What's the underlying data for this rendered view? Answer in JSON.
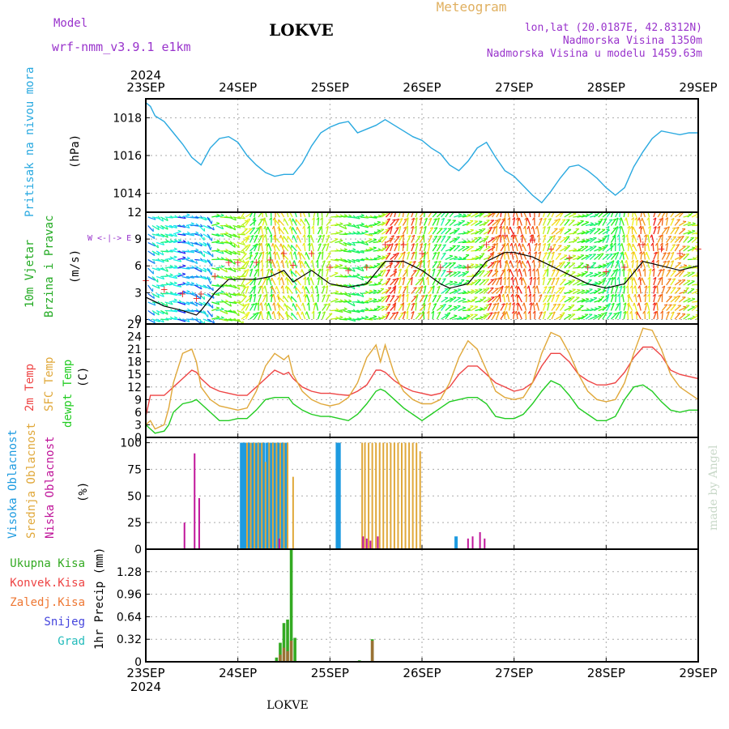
{
  "header": {
    "model_label": "Model",
    "model_name": "wrf-nmm_v3.9.1  e1km",
    "station": "LOKVE",
    "meteogram": "Meteogram",
    "lonlat": "lon,lat (20.0187E, 42.8312N)",
    "elev": "Nadmorska Visina 1350m",
    "elev_model": "Nadmorska Visina u modelu 1459.63m",
    "footer_station": "LOKVE",
    "credit": "made by Angel"
  },
  "colors": {
    "pressure": "#29a9e0",
    "t2m": "#ee4444",
    "sfc": "#e0a83a",
    "dew": "#22cc22",
    "high_cloud": "#1e9be0",
    "mid_cloud": "#e0a83a",
    "low_cloud": "#c0159a",
    "precip_total": "#33aa22",
    "precip_conv": "#ee4444",
    "precip_ice": "#ee7733",
    "snow": "#4444dd",
    "hail": "#22bbbb",
    "wind_label": "#22aa22",
    "label_purple": "#9933cc"
  },
  "chart_data": [
    {
      "type": "line",
      "name": "pressure",
      "ylabel_lines": [
        "Pritisak na nivou mora",
        "(hPa)"
      ],
      "xlim": [
        0,
        6
      ],
      "ylim": [
        1013,
        1019
      ],
      "yticks": [
        1014,
        1016,
        1018
      ],
      "x": [
        0,
        0.05,
        0.1,
        0.2,
        0.3,
        0.4,
        0.5,
        0.6,
        0.7,
        0.8,
        0.9,
        1.0,
        1.1,
        1.2,
        1.3,
        1.4,
        1.5,
        1.6,
        1.7,
        1.8,
        1.9,
        2.0,
        2.1,
        2.2,
        2.3,
        2.4,
        2.5,
        2.6,
        2.7,
        2.8,
        2.9,
        3.0,
        3.1,
        3.2,
        3.3,
        3.4,
        3.5,
        3.6,
        3.7,
        3.8,
        3.9,
        4.0,
        4.1,
        4.2,
        4.3,
        4.4,
        4.5,
        4.6,
        4.7,
        4.8,
        4.9,
        5.0,
        5.1,
        5.2,
        5.3,
        5.4,
        5.5,
        5.6,
        5.7,
        5.8,
        5.9,
        6.0
      ],
      "y": [
        1018.8,
        1018.6,
        1018.1,
        1017.8,
        1017.2,
        1016.6,
        1015.9,
        1015.5,
        1016.4,
        1016.9,
        1017.0,
        1016.7,
        1016.0,
        1015.5,
        1015.1,
        1014.9,
        1015.0,
        1015.0,
        1015.6,
        1016.5,
        1017.2,
        1017.5,
        1017.7,
        1017.8,
        1017.2,
        1017.4,
        1017.6,
        1017.9,
        1017.6,
        1017.3,
        1017.0,
        1016.8,
        1016.4,
        1016.1,
        1015.5,
        1015.2,
        1015.7,
        1016.4,
        1016.7,
        1015.9,
        1015.2,
        1014.9,
        1014.4,
        1013.9,
        1013.5,
        1014.1,
        1014.8,
        1015.4,
        1015.5,
        1015.2,
        1014.8,
        1014.3,
        1013.9,
        1014.3,
        1015.4,
        1016.2,
        1016.9,
        1017.3,
        1017.2,
        1017.1,
        1017.2,
        1017.2
      ]
    },
    {
      "type": "line",
      "name": "wind",
      "ylabel_lines": [
        "10m Vjetar",
        "Brzina i Pravac",
        "(m/s)"
      ],
      "compass": "W <-|-> E",
      "xlim": [
        0,
        6
      ],
      "ylim": [
        -0.5,
        12
      ],
      "yticks": [
        0,
        3,
        6,
        9,
        12
      ],
      "x": [
        0,
        0.2,
        0.4,
        0.55,
        0.6,
        0.75,
        0.9,
        1.0,
        1.2,
        1.35,
        1.5,
        1.6,
        1.8,
        2.0,
        2.2,
        2.4,
        2.6,
        2.8,
        3.0,
        3.2,
        3.3,
        3.5,
        3.7,
        3.9,
        4.0,
        4.2,
        4.4,
        4.6,
        4.8,
        5.0,
        5.2,
        5.4,
        5.6,
        5.8,
        6.0
      ],
      "y": [
        2.5,
        1.5,
        1.0,
        0.5,
        1.0,
        3.0,
        4.5,
        4.5,
        4.5,
        4.8,
        5.5,
        4.2,
        5.5,
        4.0,
        3.6,
        4.0,
        6.5,
        6.5,
        5.5,
        4.0,
        3.5,
        4.0,
        6.5,
        7.5,
        7.5,
        7.0,
        6.0,
        5.0,
        4.0,
        3.5,
        4.0,
        6.5,
        6.0,
        5.5,
        6.0
      ]
    },
    {
      "type": "line",
      "name": "temperature",
      "ylabel_lines": [
        "2m Temp",
        "SFC Temp",
        "dewpt Temp",
        "(C)"
      ],
      "xlim": [
        0,
        6
      ],
      "ylim": [
        0,
        27
      ],
      "yticks": [
        0,
        3,
        6,
        9,
        12,
        15,
        18,
        21,
        24,
        27
      ],
      "x": [
        0,
        0.05,
        0.1,
        0.2,
        0.25,
        0.3,
        0.4,
        0.5,
        0.55,
        0.6,
        0.7,
        0.8,
        0.9,
        1.0,
        1.1,
        1.2,
        1.3,
        1.4,
        1.5,
        1.55,
        1.6,
        1.7,
        1.8,
        1.9,
        2.0,
        2.1,
        2.2,
        2.3,
        2.4,
        2.5,
        2.55,
        2.6,
        2.7,
        2.8,
        2.9,
        3.0,
        3.1,
        3.2,
        3.3,
        3.4,
        3.5,
        3.6,
        3.7,
        3.8,
        3.9,
        4.0,
        4.1,
        4.2,
        4.3,
        4.4,
        4.5,
        4.6,
        4.7,
        4.8,
        4.9,
        5.0,
        5.1,
        5.2,
        5.3,
        5.4,
        5.5,
        5.6,
        5.7,
        5.8,
        5.9,
        6.0
      ],
      "series": [
        {
          "name": "2m Temp",
          "key": "t2m",
          "values": [
            5,
            10,
            10,
            10,
            11,
            12,
            14,
            16,
            15.5,
            14,
            12,
            11,
            10.5,
            10,
            10,
            12,
            14,
            16,
            15,
            15.5,
            14,
            12,
            11,
            10.5,
            10.5,
            10.2,
            10,
            11,
            12.5,
            16,
            16,
            15.5,
            13.5,
            12,
            11,
            10.5,
            10,
            10.5,
            12,
            15,
            17,
            17,
            15,
            13,
            12,
            11,
            11.5,
            13,
            17,
            20,
            20,
            18,
            15,
            13.5,
            12.5,
            12.5,
            13,
            15.5,
            19,
            21.5,
            21.5,
            19.5,
            16,
            15,
            14.5,
            14
          ]
        },
        {
          "name": "SFC Temp",
          "key": "sfc",
          "values": [
            3,
            4,
            2,
            3,
            7,
            13,
            20,
            21,
            18,
            12,
            9,
            7.5,
            7,
            6.5,
            7,
            11,
            17,
            20,
            18.5,
            19.5,
            15,
            11,
            9,
            8,
            7.5,
            8,
            9.5,
            13,
            19,
            22,
            18,
            22,
            15,
            11,
            9,
            8,
            8,
            9,
            13,
            19,
            23,
            21,
            16,
            11,
            9.5,
            9,
            9.5,
            13,
            20,
            25,
            24,
            20,
            15,
            11,
            9,
            8.5,
            9,
            13,
            20,
            26,
            25.5,
            21,
            15,
            12,
            10.5,
            9
          ]
        },
        {
          "name": "dewpt Temp",
          "key": "dew",
          "values": [
            3,
            2,
            1,
            1.5,
            3,
            6,
            8,
            8.5,
            9,
            8,
            6,
            4,
            4,
            4.5,
            4.5,
            6.5,
            9,
            9.5,
            9.5,
            9.5,
            8,
            6.5,
            5.5,
            5,
            5,
            4.5,
            4,
            5.5,
            8,
            11,
            11.5,
            11,
            9,
            7,
            5.5,
            4,
            5.5,
            7,
            8.5,
            9,
            9.5,
            9.5,
            8,
            5,
            4.5,
            4.5,
            5.5,
            8,
            11,
            13.5,
            12.5,
            10,
            7,
            5.5,
            4,
            4,
            5,
            9,
            12,
            12.5,
            11,
            8.5,
            6.5,
            6,
            6.5,
            6.5
          ]
        }
      ]
    },
    {
      "type": "bar",
      "name": "clouds",
      "ylabel_lines": [
        "Visoka Oblacnost",
        "Srednja Oblacnost",
        "Niska Oblacnost",
        "(%)"
      ],
      "xlim": [
        0,
        6
      ],
      "ylim": [
        0,
        105
      ],
      "yticks": [
        0,
        25,
        50,
        75,
        100
      ],
      "series": [
        {
          "name": "Visoka Oblacnost",
          "key": "high_cloud",
          "x": [
            1.04,
            1.06,
            1.08,
            1.12,
            1.16,
            1.2,
            1.24,
            1.28,
            1.32,
            1.36,
            1.4,
            1.44,
            1.48,
            1.52,
            2.08,
            2.1,
            3.37
          ],
          "values": [
            100,
            100,
            100,
            100,
            100,
            100,
            100,
            100,
            100,
            100,
            100,
            100,
            100,
            100,
            100,
            100,
            12
          ]
        },
        {
          "name": "Srednja Oblacnost",
          "key": "mid_cloud",
          "x": [
            1.1,
            1.14,
            1.18,
            1.22,
            1.26,
            1.3,
            1.34,
            1.38,
            1.42,
            1.46,
            1.5,
            1.54,
            1.6,
            2.35,
            2.38,
            2.42,
            2.46,
            2.5,
            2.54,
            2.58,
            2.62,
            2.66,
            2.7,
            2.74,
            2.78,
            2.82,
            2.86,
            2.9,
            2.94,
            2.98
          ],
          "values": [
            100,
            100,
            100,
            100,
            100,
            82,
            100,
            100,
            100,
            100,
            100,
            100,
            68,
            100,
            100,
            100,
            100,
            100,
            100,
            100,
            100,
            100,
            100,
            100,
            100,
            100,
            100,
            100,
            100,
            92
          ]
        },
        {
          "name": "Niska Oblacnost",
          "key": "low_cloud",
          "x": [
            0.42,
            0.53,
            0.58,
            1.45,
            2.36,
            2.4,
            2.44,
            2.52,
            3.5,
            3.55,
            3.63,
            3.68
          ],
          "values": [
            25,
            90,
            48,
            10,
            12,
            10,
            8,
            12,
            10,
            12,
            16,
            10
          ]
        }
      ]
    },
    {
      "type": "bar",
      "name": "precip",
      "ylabel_lines": [
        "1hr Precip (mm)"
      ],
      "legend": [
        "Ukupna Kisa",
        "Konvek.Kisa",
        "Zaledj.Kisa",
        "Snijeg",
        "Grad"
      ],
      "xlim": [
        0,
        6
      ],
      "ylim": [
        0,
        1.6
      ],
      "yticks": [
        0,
        0.32,
        0.64,
        0.96,
        1.28
      ],
      "series": [
        {
          "name": "Ukupna Kisa",
          "key": "precip_total",
          "x": [
            0.53,
            1.42,
            1.46,
            1.5,
            1.54,
            1.58,
            1.62,
            2.32,
            2.46
          ],
          "values": [
            0.01,
            0.06,
            0.27,
            0.55,
            0.6,
            1.6,
            0.34,
            0.02,
            0.32
          ]
        },
        {
          "name": "Konvek.Kisa",
          "key": "precip_conv",
          "x": [
            1.46,
            1.5,
            1.54,
            1.58,
            2.46
          ],
          "values": [
            0.1,
            0.2,
            0.15,
            0.3,
            0.3
          ]
        }
      ]
    }
  ],
  "x_axis": {
    "year": "2024",
    "ticks": [
      "23SEP",
      "24SEP",
      "25SEP",
      "26SEP",
      "27SEP",
      "28SEP",
      "29SEP"
    ]
  }
}
